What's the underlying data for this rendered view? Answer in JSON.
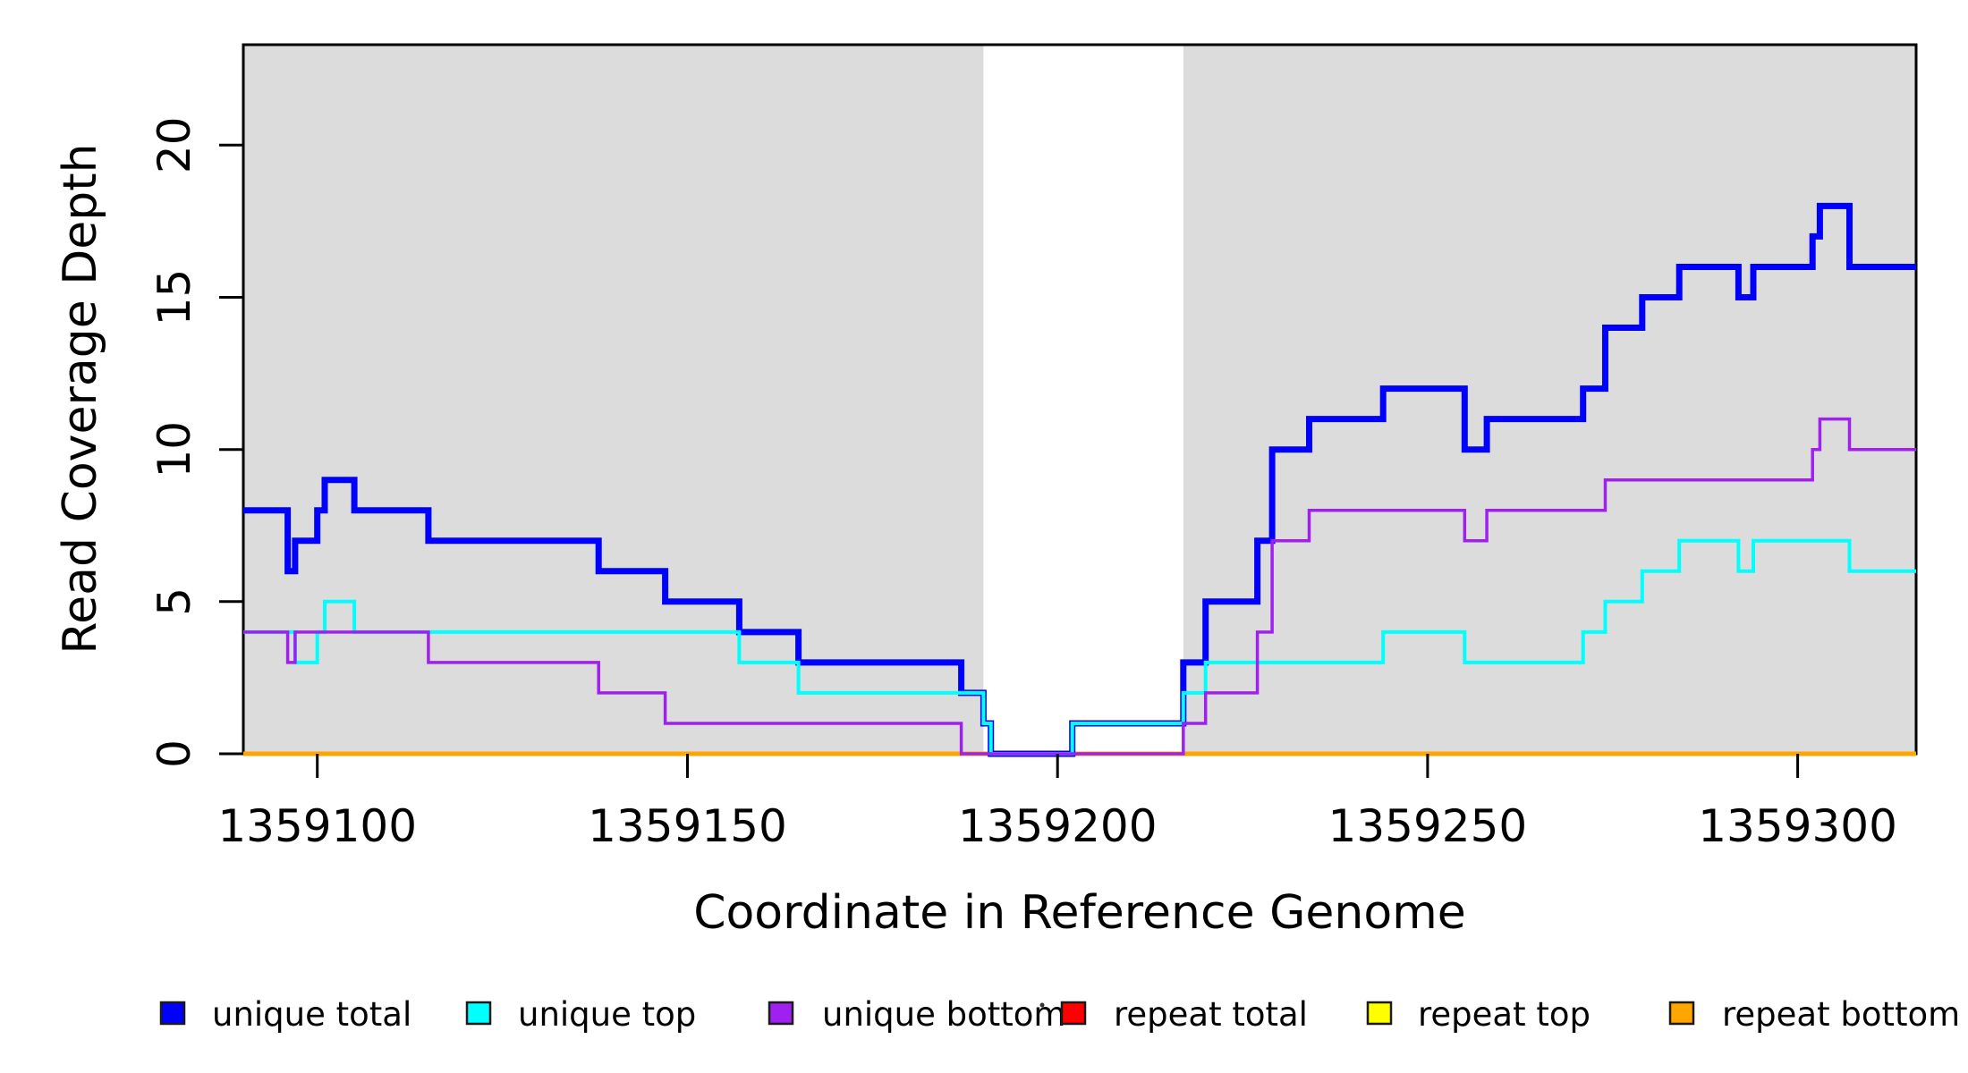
{
  "figure": {
    "background": "#FFFFFF",
    "shade_color": "#DCDCDC",
    "box_color": "#000000"
  },
  "chart_data": {
    "type": "line",
    "subtype": "step-coverage",
    "title": "",
    "xlabel": "Coordinate in Reference Genome",
    "ylabel": "Read Coverage Depth",
    "xlim": [
      1359090,
      1359316
    ],
    "ylim": [
      0,
      23.3
    ],
    "grid": false,
    "x_ticks": [
      1359100,
      1359150,
      1359200,
      1359250,
      1359300
    ],
    "y_ticks": [
      0,
      5,
      10,
      15,
      20
    ],
    "shaded_x_regions": [
      {
        "from": 1359090,
        "to": 1359190
      },
      {
        "from": 1359217,
        "to": 1359316
      }
    ],
    "unshaded_gap": {
      "from": 1359190,
      "to": 1359217
    },
    "series": [
      {
        "name": "repeat total",
        "color": "#FF0000",
        "width": 3.5,
        "segments": [
          [
            1359090,
            1359316,
            0
          ]
        ]
      },
      {
        "name": "repeat top",
        "color": "#FFFF00",
        "width": 3.5,
        "segments": [
          [
            1359090,
            1359316,
            0
          ]
        ]
      },
      {
        "name": "repeat bottom",
        "color": "#FFA500",
        "width": 5,
        "segments": [
          [
            1359090,
            1359316,
            0
          ]
        ]
      },
      {
        "name": "unique total",
        "color": "#0000FF",
        "width": 7,
        "segments": [
          [
            1359090,
            1359096,
            8
          ],
          [
            1359096,
            1359097,
            6
          ],
          [
            1359097,
            1359100,
            7
          ],
          [
            1359100,
            1359101,
            8
          ],
          [
            1359101,
            1359105,
            9
          ],
          [
            1359105,
            1359115,
            8
          ],
          [
            1359115,
            1359138,
            7
          ],
          [
            1359138,
            1359147,
            6
          ],
          [
            1359147,
            1359157,
            5
          ],
          [
            1359157,
            1359165,
            4
          ],
          [
            1359165,
            1359187,
            3
          ],
          [
            1359187,
            1359190,
            2
          ],
          [
            1359190,
            1359191,
            1
          ],
          [
            1359191,
            1359202,
            0
          ],
          [
            1359202,
            1359217,
            1
          ],
          [
            1359217,
            1359220,
            3
          ],
          [
            1359220,
            1359227,
            5
          ],
          [
            1359227,
            1359229,
            7
          ],
          [
            1359229,
            1359234,
            10
          ],
          [
            1359234,
            1359244,
            11
          ],
          [
            1359244,
            1359255,
            12
          ],
          [
            1359255,
            1359258,
            10
          ],
          [
            1359258,
            1359271,
            11
          ],
          [
            1359271,
            1359274,
            12
          ],
          [
            1359274,
            1359279,
            14
          ],
          [
            1359279,
            1359284,
            15
          ],
          [
            1359284,
            1359292,
            16
          ],
          [
            1359292,
            1359294,
            15
          ],
          [
            1359294,
            1359302,
            16
          ],
          [
            1359302,
            1359303,
            17
          ],
          [
            1359303,
            1359307,
            18
          ],
          [
            1359307,
            1359316,
            16
          ]
        ]
      },
      {
        "name": "unique top",
        "color": "#00FFFF",
        "width": 4,
        "segments": [
          [
            1359090,
            1359097,
            4
          ],
          [
            1359097,
            1359100,
            3
          ],
          [
            1359100,
            1359101,
            4
          ],
          [
            1359101,
            1359105,
            5
          ],
          [
            1359105,
            1359157,
            4
          ],
          [
            1359157,
            1359165,
            3
          ],
          [
            1359165,
            1359190,
            2
          ],
          [
            1359190,
            1359191,
            1
          ],
          [
            1359191,
            1359202,
            0
          ],
          [
            1359202,
            1359217,
            1
          ],
          [
            1359217,
            1359220,
            2
          ],
          [
            1359220,
            1359244,
            3
          ],
          [
            1359244,
            1359255,
            4
          ],
          [
            1359255,
            1359271,
            3
          ],
          [
            1359271,
            1359274,
            4
          ],
          [
            1359274,
            1359279,
            5
          ],
          [
            1359279,
            1359284,
            6
          ],
          [
            1359284,
            1359292,
            7
          ],
          [
            1359292,
            1359294,
            6
          ],
          [
            1359294,
            1359307,
            7
          ],
          [
            1359307,
            1359316,
            6
          ]
        ]
      },
      {
        "name": "unique bottom",
        "color": "#A020F0",
        "width": 3.5,
        "segments": [
          [
            1359090,
            1359096,
            4
          ],
          [
            1359096,
            1359097,
            3
          ],
          [
            1359097,
            1359115,
            4
          ],
          [
            1359115,
            1359138,
            3
          ],
          [
            1359138,
            1359147,
            2
          ],
          [
            1359147,
            1359187,
            1
          ],
          [
            1359187,
            1359217,
            0
          ],
          [
            1359217,
            1359220,
            1
          ],
          [
            1359220,
            1359227,
            2
          ],
          [
            1359227,
            1359229,
            4
          ],
          [
            1359229,
            1359234,
            7
          ],
          [
            1359234,
            1359255,
            8
          ],
          [
            1359255,
            1359258,
            7
          ],
          [
            1359258,
            1359274,
            8
          ],
          [
            1359274,
            1359302,
            9
          ],
          [
            1359302,
            1359303,
            10
          ],
          [
            1359303,
            1359307,
            11
          ],
          [
            1359307,
            1359316,
            10
          ]
        ]
      }
    ],
    "legend_position": "bottom"
  },
  "legend": {
    "items": [
      {
        "label": "unique total",
        "color": "#0000FF"
      },
      {
        "label": "unique top",
        "color": "#00FFFF"
      },
      {
        "label": "unique bottom",
        "color": "#A020F0"
      },
      {
        "label": "repeat total",
        "color": "#FF0000"
      },
      {
        "label": "repeat top",
        "color": "#FFFF00"
      },
      {
        "label": "repeat bottom",
        "color": "#FFA500"
      }
    ]
  }
}
